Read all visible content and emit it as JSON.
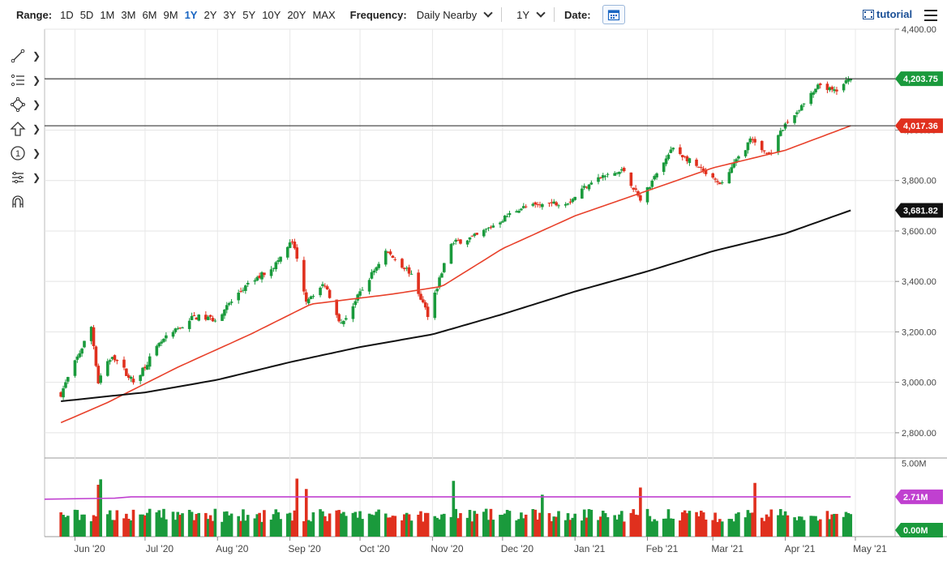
{
  "toolbar": {
    "range_label": "Range:",
    "ranges": [
      "1D",
      "5D",
      "1M",
      "3M",
      "6M",
      "9M",
      "1Y",
      "2Y",
      "3Y",
      "5Y",
      "10Y",
      "20Y",
      "MAX"
    ],
    "active_range": "1Y",
    "frequency_label": "Frequency:",
    "frequency_value": "Daily Nearby",
    "period_value": "1Y",
    "date_label": "Date:",
    "tutorial_label": "tutorial"
  },
  "colors": {
    "up": "#1a9a3c",
    "down": "#e0301e",
    "ma_fast": "#e8412b",
    "ma_slow": "#111111",
    "vol_avg": "#c040d0",
    "accent": "#1a66c2"
  },
  "drawing_tools": [
    "line-tool-icon",
    "fibonacci-tool-icon",
    "shape-tool-icon",
    "arrow-tool-icon",
    "annotation-tool-icon",
    "measure-tool-icon",
    "magnet-icon"
  ],
  "chart_data": {
    "type": "candlestick",
    "price_axis": {
      "ylim": [
        2700,
        4400
      ],
      "ticks": [
        "4,400.00",
        "4,200.00",
        "4,000.00",
        "3,800.00",
        "3,600.00",
        "3,400.00",
        "3,200.00",
        "3,000.00",
        "2,800.00"
      ]
    },
    "volume_axis": {
      "ylim": [
        0,
        5.3
      ],
      "ticks": [
        "5.00M"
      ]
    },
    "x_tick_labels": [
      "Jun '20",
      "Jul '20",
      "Aug '20",
      "Sep '20",
      "Oct '20",
      "Nov '20",
      "Dec '20",
      "Jan '21",
      "Feb '21",
      "Mar '21",
      "Apr '21",
      "May '21"
    ],
    "horizontal_lines": [
      4203.75,
      4017.36
    ],
    "price_labels": [
      {
        "text": "4,203.75",
        "color": "#1a9a3c"
      },
      {
        "text": "4,017.36",
        "color": "#e0301e"
      },
      {
        "text": "3,681.82",
        "color": "#111111"
      }
    ],
    "volume_labels": [
      {
        "text": "2.71M",
        "color": "#c040d0"
      },
      {
        "text": "0.00M",
        "color": "#1a9a3c"
      }
    ],
    "close_anchors": [
      [
        "2020-05-26",
        2955
      ],
      [
        "2020-06-08",
        3220
      ],
      [
        "2020-06-11",
        3000
      ],
      [
        "2020-06-17",
        3110
      ],
      [
        "2020-06-26",
        3000
      ],
      [
        "2020-07-08",
        3160
      ],
      [
        "2020-07-22",
        3260
      ],
      [
        "2020-07-31",
        3250
      ],
      [
        "2020-08-12",
        3370
      ],
      [
        "2020-08-26",
        3470
      ],
      [
        "2020-09-02",
        3560
      ],
      [
        "2020-09-08",
        3330
      ],
      [
        "2020-09-16",
        3390
      ],
      [
        "2020-09-23",
        3230
      ],
      [
        "2020-10-12",
        3520
      ],
      [
        "2020-10-22",
        3440
      ],
      [
        "2020-10-30",
        3270
      ],
      [
        "2020-11-09",
        3550
      ],
      [
        "2020-11-20",
        3580
      ],
      [
        "2020-12-08",
        3690
      ],
      [
        "2020-12-30",
        3720
      ],
      [
        "2021-01-08",
        3800
      ],
      [
        "2021-01-22",
        3840
      ],
      [
        "2021-01-29",
        3720
      ],
      [
        "2021-02-12",
        3930
      ],
      [
        "2021-03-04",
        3780
      ],
      [
        "2021-03-17",
        3960
      ],
      [
        "2021-03-25",
        3900
      ],
      [
        "2021-04-01",
        4020
      ],
      [
        "2021-04-16",
        4180
      ],
      [
        "2021-04-22",
        4150
      ],
      [
        "2021-04-29",
        4203.75
      ]
    ],
    "ma_fast_anchors": [
      [
        "2020-05-26",
        2840
      ],
      [
        "2020-06-15",
        2920
      ],
      [
        "2020-07-15",
        3060
      ],
      [
        "2020-08-15",
        3190
      ],
      [
        "2020-09-10",
        3310
      ],
      [
        "2020-10-15",
        3350
      ],
      [
        "2020-11-05",
        3380
      ],
      [
        "2020-12-01",
        3530
      ],
      [
        "2021-01-01",
        3660
      ],
      [
        "2021-02-01",
        3760
      ],
      [
        "2021-03-01",
        3850
      ],
      [
        "2021-04-01",
        3920
      ],
      [
        "2021-04-29",
        4017.36
      ]
    ],
    "ma_slow_anchors": [
      [
        "2020-05-26",
        2925
      ],
      [
        "2020-07-01",
        2960
      ],
      [
        "2020-08-01",
        3010
      ],
      [
        "2020-09-01",
        3080
      ],
      [
        "2020-10-01",
        3140
      ],
      [
        "2020-11-01",
        3190
      ],
      [
        "2020-12-01",
        3270
      ],
      [
        "2021-01-01",
        3360
      ],
      [
        "2021-02-01",
        3440
      ],
      [
        "2021-03-01",
        3520
      ],
      [
        "2021-04-01",
        3590
      ],
      [
        "2021-04-29",
        3681.82
      ]
    ],
    "volume_avg": 2.71,
    "volume_spike_dates": [
      "2020-06-11",
      "2020-06-12",
      "2020-09-04",
      "2020-09-08",
      "2020-11-10",
      "2020-12-18",
      "2021-01-29",
      "2021-03-19"
    ]
  }
}
